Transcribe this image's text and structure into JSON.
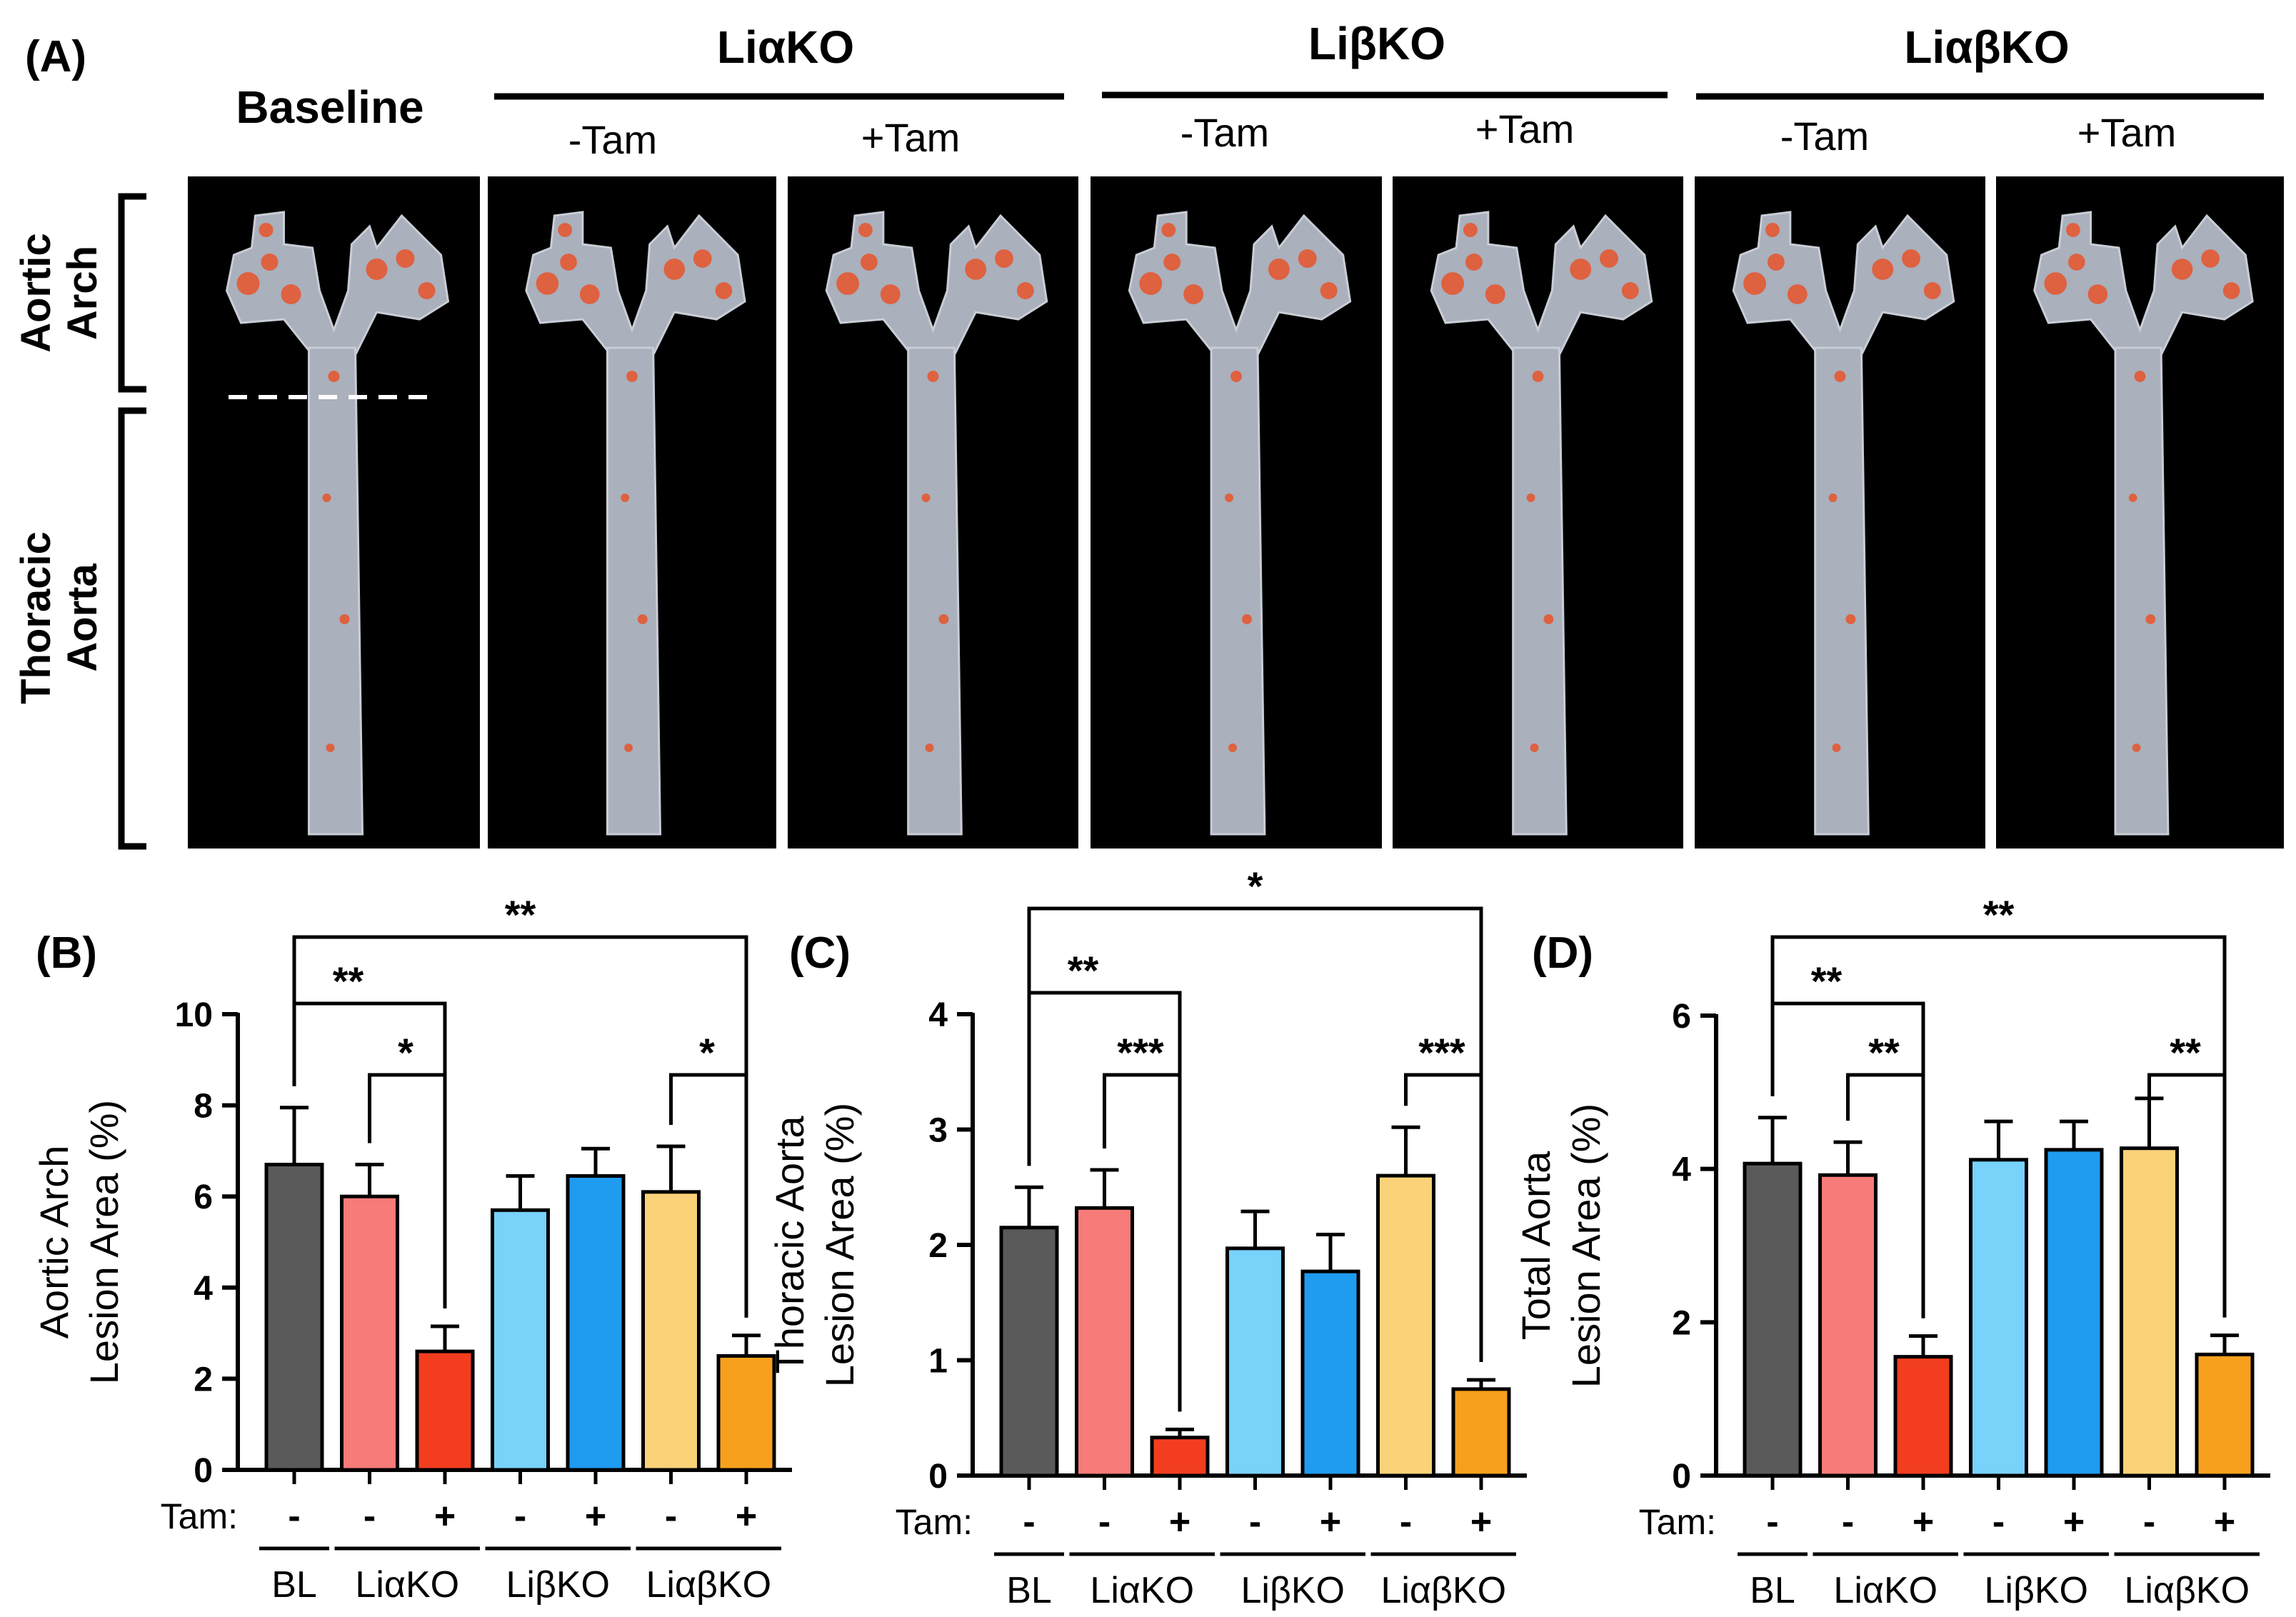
{
  "panel_a": {
    "label": "(A)",
    "baseline_title": "Baseline",
    "groups": [
      {
        "title": "LiαKO",
        "minus": "-Tam",
        "plus": "+Tam"
      },
      {
        "title": "LiβKO",
        "minus": "-Tam",
        "plus": "+Tam"
      },
      {
        "title": "LiαβKO",
        "minus": "-Tam",
        "plus": "+Tam"
      }
    ],
    "row_labels": {
      "arch": [
        "Aortic",
        "Arch"
      ],
      "thoracic": [
        "Thoracic",
        "Aorta"
      ]
    }
  },
  "colors": {
    "BL": "#5a5a5a",
    "LiaKO_minus": "#f77b78",
    "LiaKO_plus": "#f23d1f",
    "LibKO_minus": "#78d2fa",
    "LibKO_plus": "#1f9bf0",
    "LiabKO_minus": "#fad278",
    "LiabKO_plus": "#f7a01e",
    "lesion": "#e8542a",
    "tissue": "#aab0bc"
  },
  "tam_label": "Tam:",
  "tam_signs": [
    "-",
    "-",
    "+",
    "-",
    "+",
    "-",
    "+"
  ],
  "group_labels": [
    "BL",
    "LiαKO",
    "LiβKO",
    "LiαβKO"
  ],
  "chart_data": [
    {
      "panel": "(B)",
      "type": "bar",
      "ylabel": [
        "Aortic Arch",
        "Lesion Area (%)"
      ],
      "ylim": [
        0,
        10
      ],
      "yticks": [
        "0",
        "2",
        "4",
        "6",
        "8",
        "10"
      ],
      "categories": [
        "BL -",
        "LiαKO -",
        "LiαKO +",
        "LiβKO -",
        "LiβKO +",
        "LiαβKO -",
        "LiαβKO +"
      ],
      "values": [
        6.7,
        6.0,
        2.6,
        5.7,
        6.45,
        6.1,
        2.5
      ],
      "errors": [
        1.25,
        0.7,
        0.55,
        0.75,
        0.6,
        1.0,
        0.45
      ],
      "significance": [
        {
          "from": 0,
          "to": 6,
          "label": "**"
        },
        {
          "from": 0,
          "to": 2,
          "label": "**"
        },
        {
          "from": 1,
          "to": 2,
          "label": "*"
        },
        {
          "from": 5,
          "to": 6,
          "label": "*"
        }
      ]
    },
    {
      "panel": "(C)",
      "type": "bar",
      "ylabel": [
        "Thoracic Aorta",
        "Lesion Area (%)"
      ],
      "ylim": [
        0,
        4
      ],
      "yticks": [
        "0",
        "1",
        "2",
        "3",
        "4"
      ],
      "categories": [
        "BL -",
        "LiαKO -",
        "LiαKO +",
        "LiβKO -",
        "LiβKO +",
        "LiαβKO -",
        "LiαβKO +"
      ],
      "values": [
        2.15,
        2.32,
        0.33,
        1.97,
        1.77,
        2.6,
        0.75
      ],
      "errors": [
        0.35,
        0.33,
        0.07,
        0.32,
        0.32,
        0.42,
        0.08
      ],
      "significance": [
        {
          "from": 0,
          "to": 6,
          "label": "*"
        },
        {
          "from": 0,
          "to": 2,
          "label": "**"
        },
        {
          "from": 1,
          "to": 2,
          "label": "***"
        },
        {
          "from": 5,
          "to": 6,
          "label": "***"
        }
      ]
    },
    {
      "panel": "(D)",
      "type": "bar",
      "ylabel": [
        "Total Aorta",
        "Lesion Area (%)"
      ],
      "ylim": [
        0,
        6
      ],
      "yticks": [
        "0",
        "2",
        "4",
        "6"
      ],
      "categories": [
        "BL -",
        "LiαKO -",
        "LiαKO +",
        "LiβKO -",
        "LiβKO +",
        "LiαβKO -",
        "LiαβKO +"
      ],
      "values": [
        4.07,
        3.92,
        1.55,
        4.12,
        4.25,
        4.27,
        1.58
      ],
      "errors": [
        0.6,
        0.43,
        0.27,
        0.5,
        0.37,
        0.65,
        0.25
      ],
      "significance": [
        {
          "from": 0,
          "to": 6,
          "label": "**"
        },
        {
          "from": 0,
          "to": 2,
          "label": "**"
        },
        {
          "from": 1,
          "to": 2,
          "label": "**"
        },
        {
          "from": 5,
          "to": 6,
          "label": "**"
        }
      ]
    }
  ]
}
